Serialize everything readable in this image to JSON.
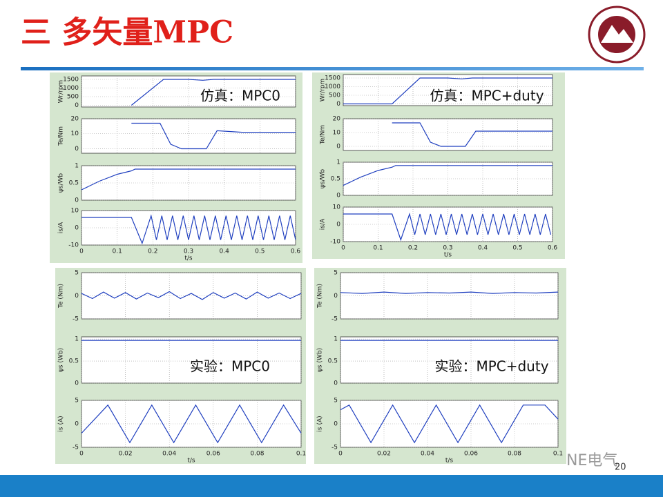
{
  "title": "三 多矢量MPC",
  "page_number": "20",
  "watermark": "NE电气",
  "panels": [
    {
      "caption": "仿真：MPC0",
      "xlabel": "t/s",
      "xlim": [
        0,
        0.6
      ],
      "xticks": [
        0,
        0.1,
        0.2,
        0.3,
        0.4,
        0.5,
        0.6
      ],
      "color": "#1f3fbf",
      "plots": [
        {
          "ylabel": "Wr/rpm",
          "ylim": [
            -100,
            1700
          ],
          "yticks": [
            0,
            500,
            1000,
            1500
          ],
          "x": [
            0.14,
            0.23,
            0.3,
            0.34,
            0.37,
            0.6
          ],
          "values": [
            0,
            1500,
            1500,
            1450,
            1500,
            1500
          ]
        },
        {
          "ylabel": "Te/Nm",
          "ylim": [
            -3,
            20
          ],
          "yticks": [
            0,
            10,
            20
          ],
          "x": [
            0.14,
            0.22,
            0.25,
            0.28,
            0.35,
            0.38,
            0.45,
            0.6
          ],
          "values": [
            17,
            17,
            3,
            0,
            0,
            12,
            11,
            11
          ]
        },
        {
          "ylabel": "ψs/Wb",
          "ylim": [
            0,
            1
          ],
          "yticks": [
            0,
            0.5,
            1
          ],
          "x": [
            0,
            0.05,
            0.1,
            0.14,
            0.15,
            0.6
          ],
          "values": [
            0.3,
            0.55,
            0.75,
            0.85,
            0.9,
            0.9
          ]
        },
        {
          "ylabel": "is/A",
          "ylim": [
            -10,
            10
          ],
          "yticks": [
            -10,
            0,
            10
          ],
          "x": [
            0,
            0.14,
            0.17,
            0.195,
            0.21,
            0.225,
            0.24,
            0.255,
            0.27,
            0.285,
            0.3,
            0.315,
            0.33,
            0.345,
            0.36,
            0.375,
            0.39,
            0.405,
            0.42,
            0.435,
            0.45,
            0.465,
            0.48,
            0.495,
            0.51,
            0.525,
            0.54,
            0.555,
            0.57,
            0.585,
            0.6
          ],
          "values": [
            6,
            6,
            -9,
            7,
            -7,
            7,
            -7,
            7,
            -7,
            7,
            -7,
            7,
            -7,
            7,
            -7,
            7,
            -7,
            7,
            -7,
            7,
            -7,
            7,
            -7,
            7,
            -7,
            7,
            -7,
            7,
            -7,
            7,
            -7
          ]
        }
      ]
    },
    {
      "caption": "仿真：MPC+duty",
      "xlabel": "t/s",
      "xlim": [
        0,
        0.6
      ],
      "xticks": [
        0,
        0.1,
        0.2,
        0.3,
        0.4,
        0.5,
        0.6
      ],
      "color": "#1f3fbf",
      "plots": [
        {
          "ylabel": "Wr/rpm",
          "ylim": [
            -100,
            1700
          ],
          "yticks": [
            0,
            500,
            1000,
            1500
          ],
          "x": [
            0,
            0.14,
            0.22,
            0.3,
            0.34,
            0.37,
            0.6
          ],
          "values": [
            0,
            0,
            1500,
            1500,
            1450,
            1500,
            1500
          ]
        },
        {
          "ylabel": "Te/Nm",
          "ylim": [
            -3,
            20
          ],
          "yticks": [
            0,
            10,
            20
          ],
          "x": [
            0.14,
            0.22,
            0.25,
            0.28,
            0.35,
            0.38,
            0.45,
            0.6
          ],
          "values": [
            17,
            17,
            3,
            0,
            0,
            11,
            11,
            11
          ]
        },
        {
          "ylabel": "ψs/Wb",
          "ylim": [
            0,
            1
          ],
          "yticks": [
            0,
            0.5,
            1
          ],
          "x": [
            0,
            0.05,
            0.1,
            0.14,
            0.15,
            0.6
          ],
          "values": [
            0.3,
            0.55,
            0.75,
            0.85,
            0.9,
            0.9
          ]
        },
        {
          "ylabel": "is/A",
          "ylim": [
            -10,
            10
          ],
          "yticks": [
            -10,
            0,
            10
          ],
          "x": [
            0,
            0.14,
            0.165,
            0.19,
            0.205,
            0.22,
            0.235,
            0.25,
            0.265,
            0.28,
            0.295,
            0.31,
            0.325,
            0.34,
            0.355,
            0.37,
            0.385,
            0.4,
            0.415,
            0.43,
            0.445,
            0.46,
            0.475,
            0.49,
            0.505,
            0.52,
            0.535,
            0.55,
            0.565,
            0.58,
            0.595
          ],
          "values": [
            6,
            6,
            -9,
            6,
            -6,
            6,
            -6,
            6,
            -6,
            6,
            -6,
            6,
            -6,
            6,
            -6,
            6,
            -6,
            6,
            -6,
            6,
            -6,
            6,
            -6,
            6,
            -6,
            6,
            -6,
            6,
            -6,
            6,
            -6
          ]
        }
      ]
    },
    {
      "caption": "实验：MPC0",
      "xlabel": "t/s",
      "xlim": [
        0,
        0.1
      ],
      "xticks": [
        0,
        0.02,
        0.04,
        0.06,
        0.08,
        0.1
      ],
      "color": "#1f3fbf",
      "plots": [
        {
          "ylabel": "Te (Nm)",
          "ylim": [
            -5,
            5
          ],
          "yticks": [
            -5,
            0,
            5
          ],
          "x": [
            0,
            0.005,
            0.01,
            0.015,
            0.02,
            0.025,
            0.03,
            0.035,
            0.04,
            0.045,
            0.05,
            0.055,
            0.06,
            0.065,
            0.07,
            0.075,
            0.08,
            0.085,
            0.09,
            0.095,
            0.1
          ],
          "values": [
            0.5,
            -0.6,
            0.8,
            -0.5,
            0.7,
            -0.7,
            0.6,
            -0.4,
            0.9,
            -0.6,
            0.5,
            -0.8,
            0.7,
            -0.5,
            0.6,
            -0.7,
            0.8,
            -0.5,
            0.6,
            -0.6,
            0.5
          ]
        },
        {
          "ylabel": "ψs (Wb)",
          "ylim": [
            0,
            1.05
          ],
          "yticks": [
            0,
            0.5,
            1
          ],
          "x": [
            0,
            0.1
          ],
          "values": [
            0.97,
            0.97
          ]
        },
        {
          "ylabel": "is (A)",
          "ylim": [
            -5,
            5
          ],
          "yticks": [
            -5,
            0,
            5
          ],
          "x": [
            0,
            0.012,
            0.022,
            0.032,
            0.042,
            0.052,
            0.062,
            0.072,
            0.082,
            0.092,
            0.1
          ],
          "values": [
            -2,
            4,
            -4,
            4,
            -4,
            4,
            -4,
            4,
            -4,
            4,
            -2
          ]
        }
      ]
    },
    {
      "caption": "实验：MPC+duty",
      "xlabel": "t/s",
      "xlim": [
        0,
        0.1
      ],
      "xticks": [
        0,
        0.02,
        0.04,
        0.06,
        0.08,
        0.1
      ],
      "color": "#1f3fbf",
      "plots": [
        {
          "ylabel": "Te (Nm)",
          "ylim": [
            -5,
            5
          ],
          "yticks": [
            -5,
            0,
            5
          ],
          "x": [
            0,
            0.01,
            0.02,
            0.03,
            0.04,
            0.05,
            0.06,
            0.07,
            0.08,
            0.09,
            0.1
          ],
          "values": [
            0.7,
            0.5,
            0.8,
            0.5,
            0.7,
            0.6,
            0.8,
            0.5,
            0.7,
            0.6,
            0.8
          ]
        },
        {
          "ylabel": "ψs (Wb)",
          "ylim": [
            0,
            1.05
          ],
          "yticks": [
            0,
            0.5,
            1
          ],
          "x": [
            0,
            0.1
          ],
          "values": [
            0.97,
            0.97
          ]
        },
        {
          "ylabel": "is (A)",
          "ylim": [
            -5,
            5
          ],
          "yticks": [
            -5,
            0,
            5
          ],
          "x": [
            0,
            0.004,
            0.014,
            0.024,
            0.034,
            0.044,
            0.054,
            0.064,
            0.074,
            0.084,
            0.094,
            0.1
          ],
          "values": [
            3,
            4,
            -4,
            4,
            -4,
            4,
            -4,
            4,
            -4,
            4,
            4,
            1
          ]
        }
      ]
    }
  ]
}
